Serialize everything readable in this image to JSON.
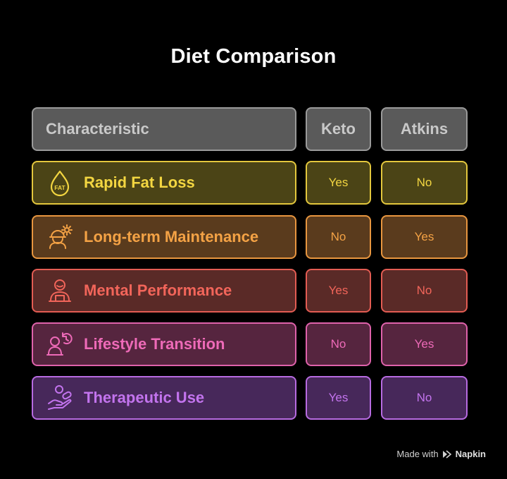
{
  "title": "Diet Comparison",
  "header": {
    "characteristic": "Characteristic",
    "keto": "Keto",
    "atkins": "Atkins"
  },
  "rows": [
    {
      "label": "Rapid Fat Loss",
      "icon": "fat-drop-icon",
      "icon_text": "FAT",
      "keto": "Yes",
      "atkins": "No",
      "color": "#f3d641",
      "fill": "#4b4416",
      "border": "#e3c73d"
    },
    {
      "label": "Long-term Maintenance",
      "icon": "worker-gear-icon",
      "keto": "No",
      "atkins": "Yes",
      "color": "#f4a245",
      "fill": "#5a3b1d",
      "border": "#e8963f"
    },
    {
      "label": "Mental Performance",
      "icon": "person-desk-icon",
      "keto": "Yes",
      "atkins": "No",
      "color": "#f2655a",
      "fill": "#5a2a27",
      "border": "#e35c53"
    },
    {
      "label": "Lifestyle Transition",
      "icon": "person-cycle-icon",
      "keto": "No",
      "atkins": "Yes",
      "color": "#ee6ab8",
      "fill": "#56253f",
      "border": "#df62ab"
    },
    {
      "label": "Therapeutic Use",
      "icon": "hand-pill-icon",
      "keto": "Yes",
      "atkins": "No",
      "color": "#c374ee",
      "fill": "#47285a",
      "border": "#b76be1"
    }
  ],
  "footer": {
    "made_with": "Made with",
    "brand": "Napkin"
  }
}
